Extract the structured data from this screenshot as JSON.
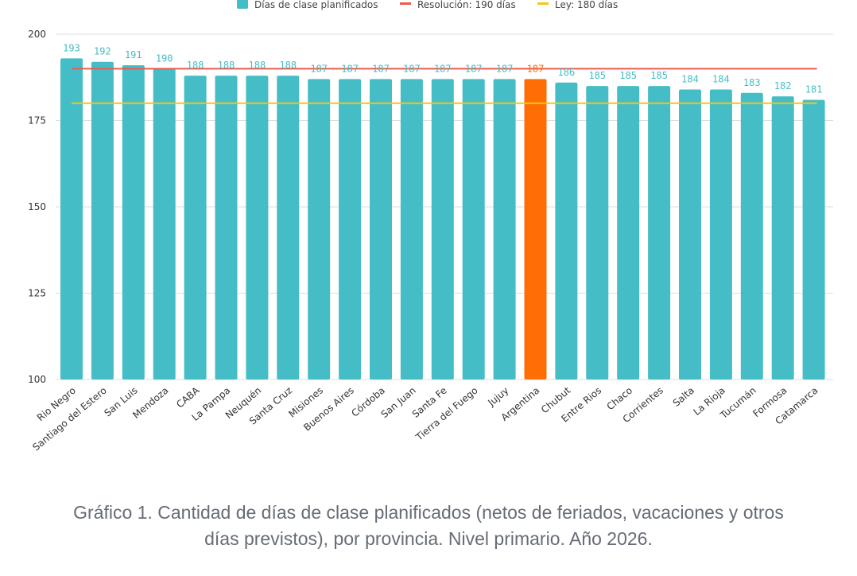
{
  "chart_data": {
    "type": "bar",
    "categories": [
      "Rio Negro",
      "Santiago del Estero",
      "San Luis",
      "Mendoza",
      "CABA",
      "La Pampa",
      "Neuquén",
      "Santa Cruz",
      "Misiones",
      "Buenos Aires",
      "Córdoba",
      "San Juan",
      "Santa Fe",
      "Tierra del Fuego",
      "Jujuy",
      "Argentina",
      "Chubut",
      "Entre Rios",
      "Chaco",
      "Corrientes",
      "Salta",
      "La Rioja",
      "Tucumán",
      "Formosa",
      "Catamarca"
    ],
    "values": [
      193,
      192,
      191,
      190,
      188,
      188,
      188,
      188,
      187,
      187,
      187,
      187,
      187,
      187,
      187,
      187,
      186,
      185,
      185,
      185,
      184,
      184,
      183,
      182,
      181
    ],
    "highlight_category": "Argentina",
    "series_name": "Días de clase planificados",
    "reference_lines": [
      {
        "name": "Resolución: 190 días",
        "value": 190,
        "color": "#ef5a4e"
      },
      {
        "name": "Ley: 180 días",
        "value": 180,
        "color": "#f5c518"
      }
    ],
    "ylim": [
      100,
      200
    ],
    "yticks": [
      100,
      125,
      150,
      175,
      200
    ],
    "grid": true,
    "legend_position": "top-center",
    "colors": {
      "bar": "#45bdc6",
      "highlight": "#ff6e04",
      "label": "#45bdc6",
      "highlight_label": "#ff6e04"
    }
  },
  "caption": {
    "line1": "Gráfico 1. Cantidad de días de clase planificados  (netos de feriados, vacaciones y otros",
    "line2": "días previstos), por provincia. Nivel primario. Año 2026."
  }
}
